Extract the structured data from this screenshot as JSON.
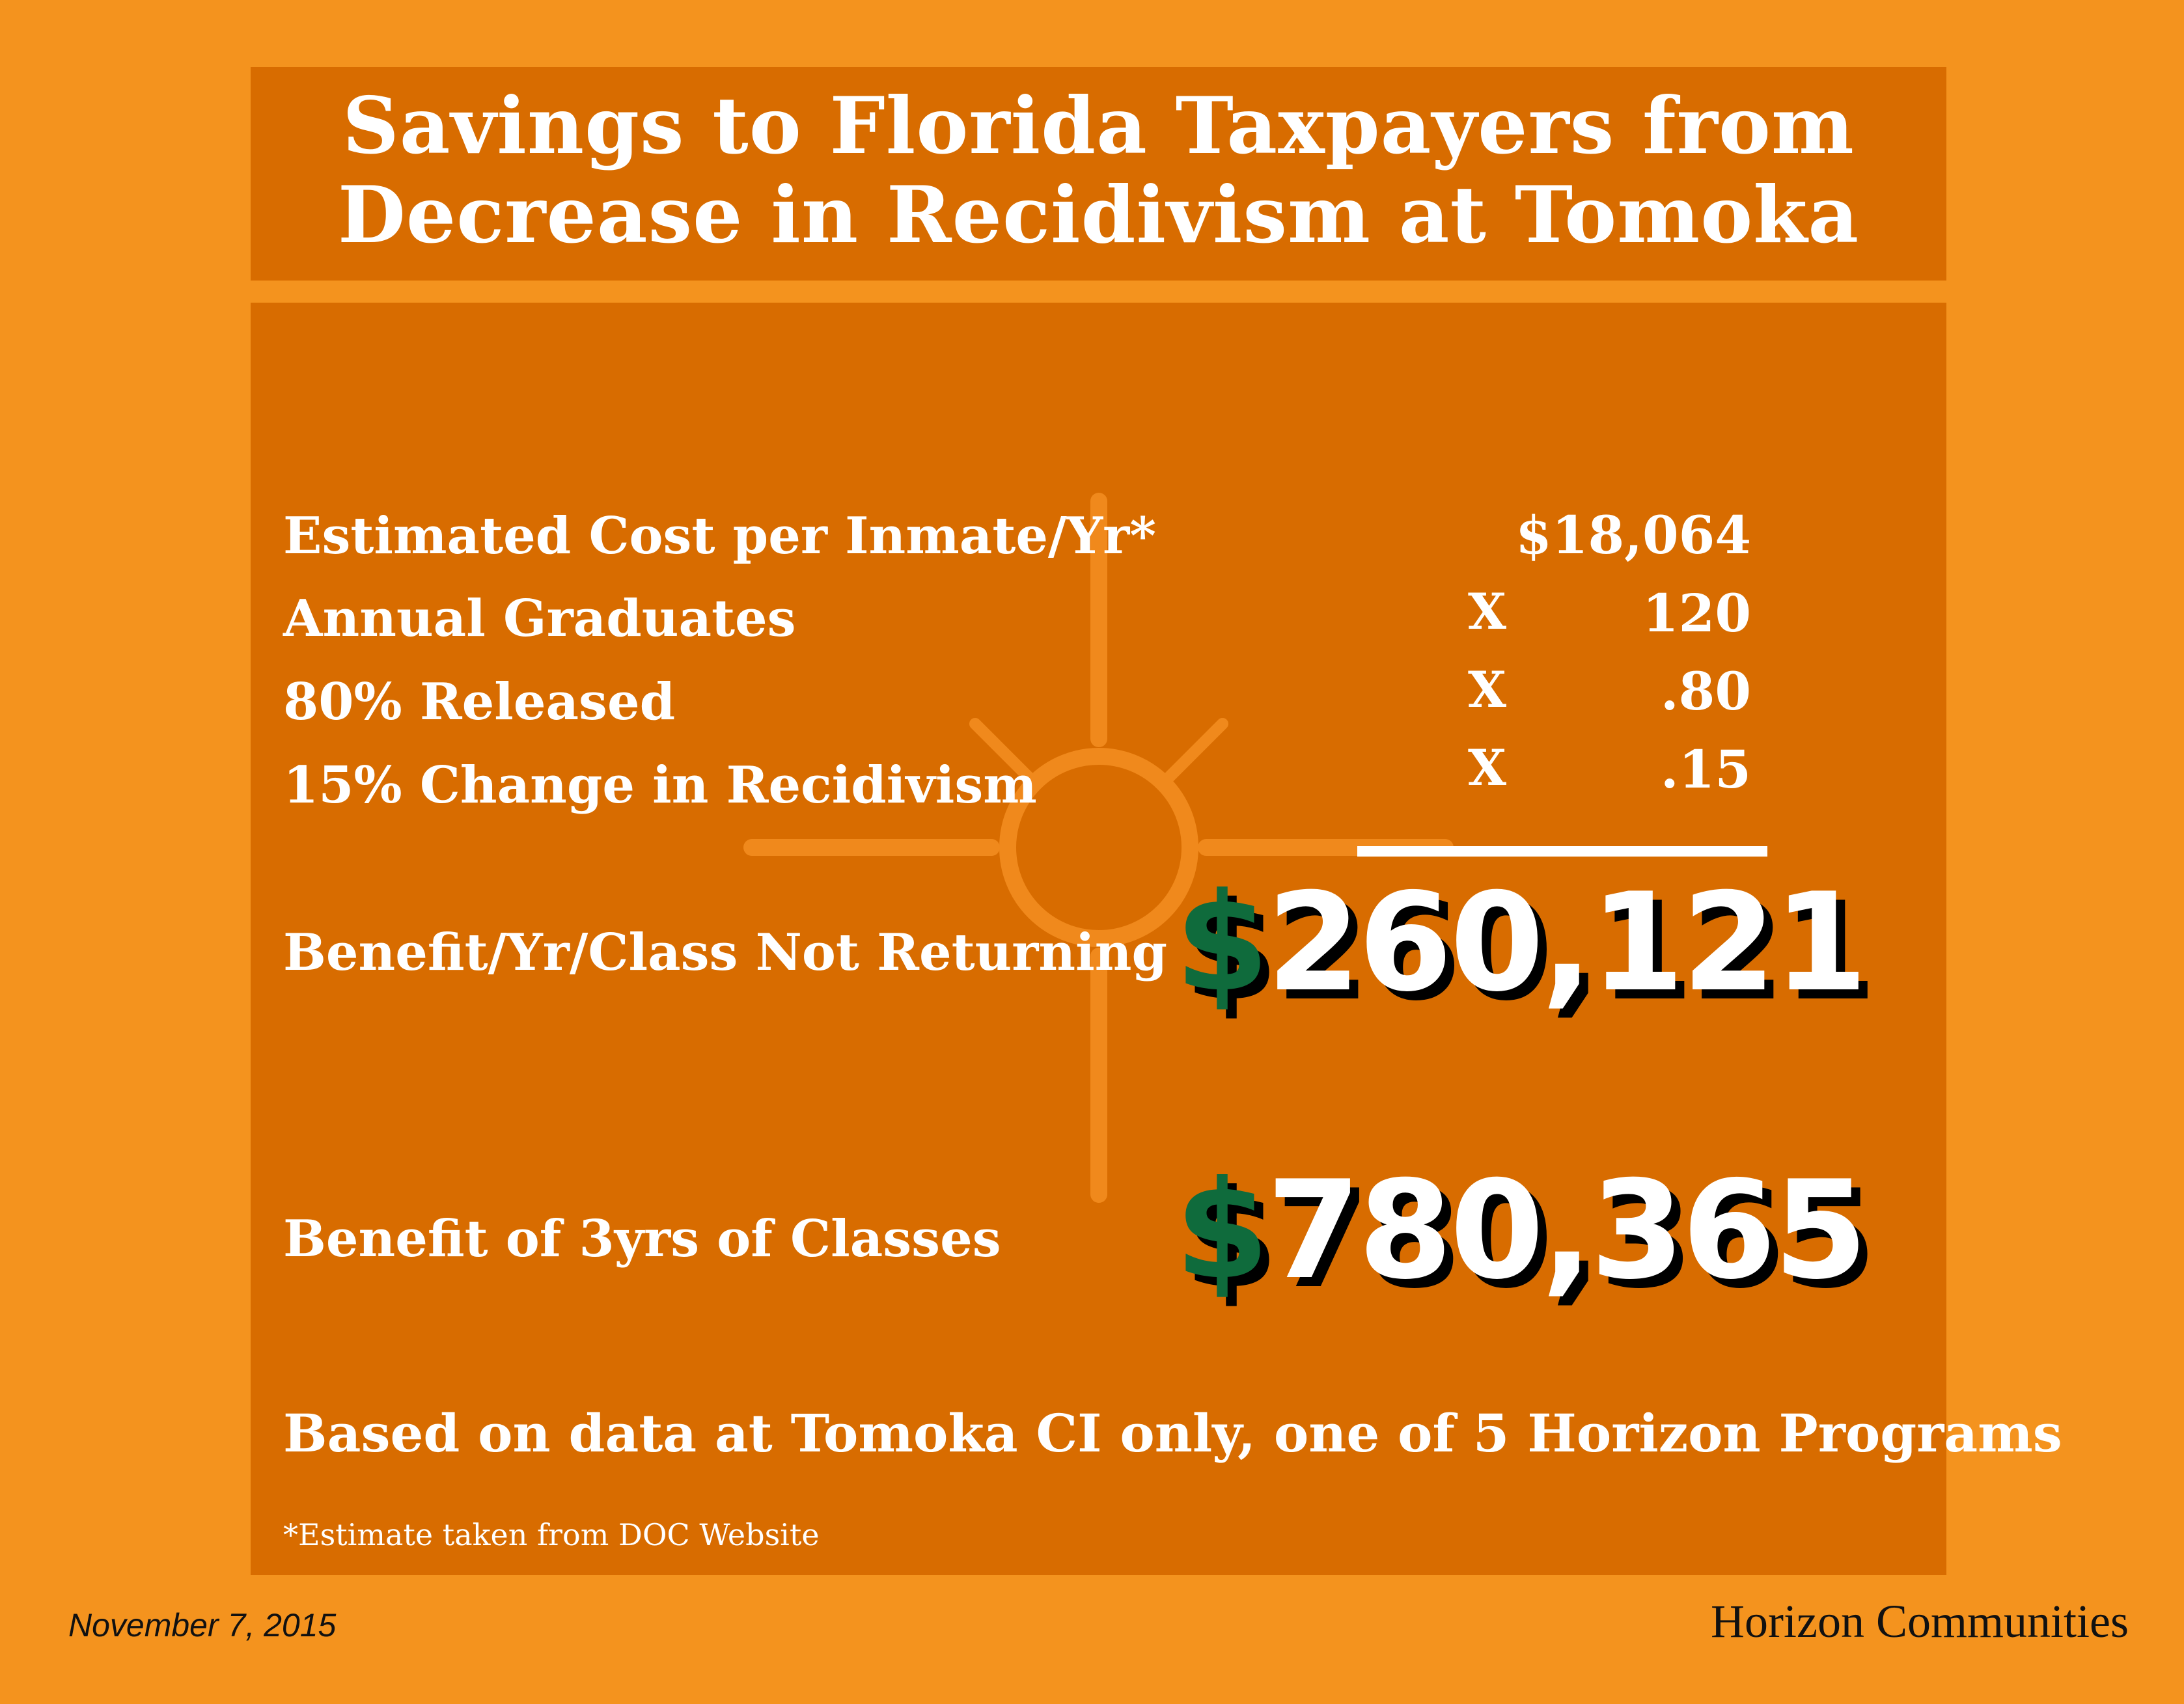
{
  "title": {
    "line1": "Savings to Florida Taxpayers from",
    "line2": "Decrease in Recidivism at Tomoka"
  },
  "calculation": {
    "rows": [
      {
        "label": "Estimated Cost per Inmate/Yr*",
        "operator": "",
        "value": "$18,064"
      },
      {
        "label": "Annual Graduates",
        "operator": "X",
        "value": "120"
      },
      {
        "label": "80% Released",
        "operator": "X",
        "value": ".80"
      },
      {
        "label": "15% Change in Recidivism",
        "operator": "X",
        "value": ".15"
      }
    ],
    "benefit_per_year": {
      "label": "Benefit/Yr/Class Not Returning",
      "currency": "$",
      "amount": "260,121"
    },
    "benefit_three_years": {
      "label": "Benefit of 3yrs of Classes",
      "currency": "$",
      "amount": "780,365"
    }
  },
  "note": "Based on data at Tomoka CI only, one of 5 Horizon Programs",
  "footnote": "*Estimate taken from  DOC Website",
  "footer": {
    "date": "November 7, 2015",
    "organization": "Horizon Communities"
  },
  "colors": {
    "page_background": "#f4931e",
    "panel_background": "#d86c00",
    "emblem": "#f0891c",
    "currency_symbol": "#0f6b3c",
    "text": "#ffffff",
    "footer_text": "#111111"
  },
  "icons": {
    "background_emblem": "sun-cross-emblem-icon"
  }
}
